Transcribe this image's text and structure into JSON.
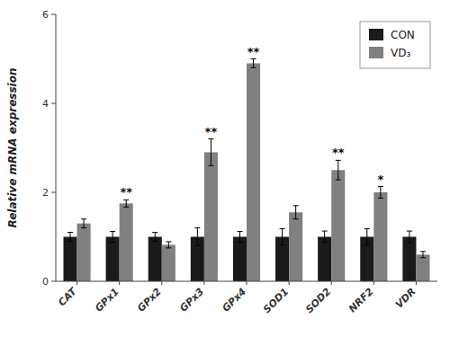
{
  "chart_data": {
    "type": "bar",
    "categories": [
      "CAT",
      "GPx1",
      "GPx2",
      "GPx3",
      "GPx4",
      "SOD1",
      "SOD2",
      "NRF2",
      "VDR"
    ],
    "series": [
      {
        "name": "CON",
        "color": "#1a1a1a",
        "values": [
          1.0,
          1.0,
          1.0,
          1.0,
          1.0,
          1.0,
          1.0,
          1.0,
          1.0
        ],
        "errors": [
          0.1,
          0.12,
          0.1,
          0.2,
          0.12,
          0.18,
          0.13,
          0.18,
          0.13
        ]
      },
      {
        "name": "VD₃",
        "color": "#808080",
        "values": [
          1.3,
          1.75,
          0.82,
          2.9,
          4.9,
          1.55,
          2.5,
          2.0,
          0.6
        ],
        "errors": [
          0.1,
          0.08,
          0.07,
          0.3,
          0.1,
          0.15,
          0.22,
          0.13,
          0.07
        ],
        "significance": [
          null,
          "**",
          null,
          "**",
          "**",
          null,
          "**",
          "*",
          null
        ]
      }
    ],
    "ylabel": "Relative mRNA expression",
    "ylim": [
      0,
      6
    ],
    "yticks": [
      0,
      2,
      4,
      6
    ],
    "grid": false,
    "legend": "upper right"
  }
}
